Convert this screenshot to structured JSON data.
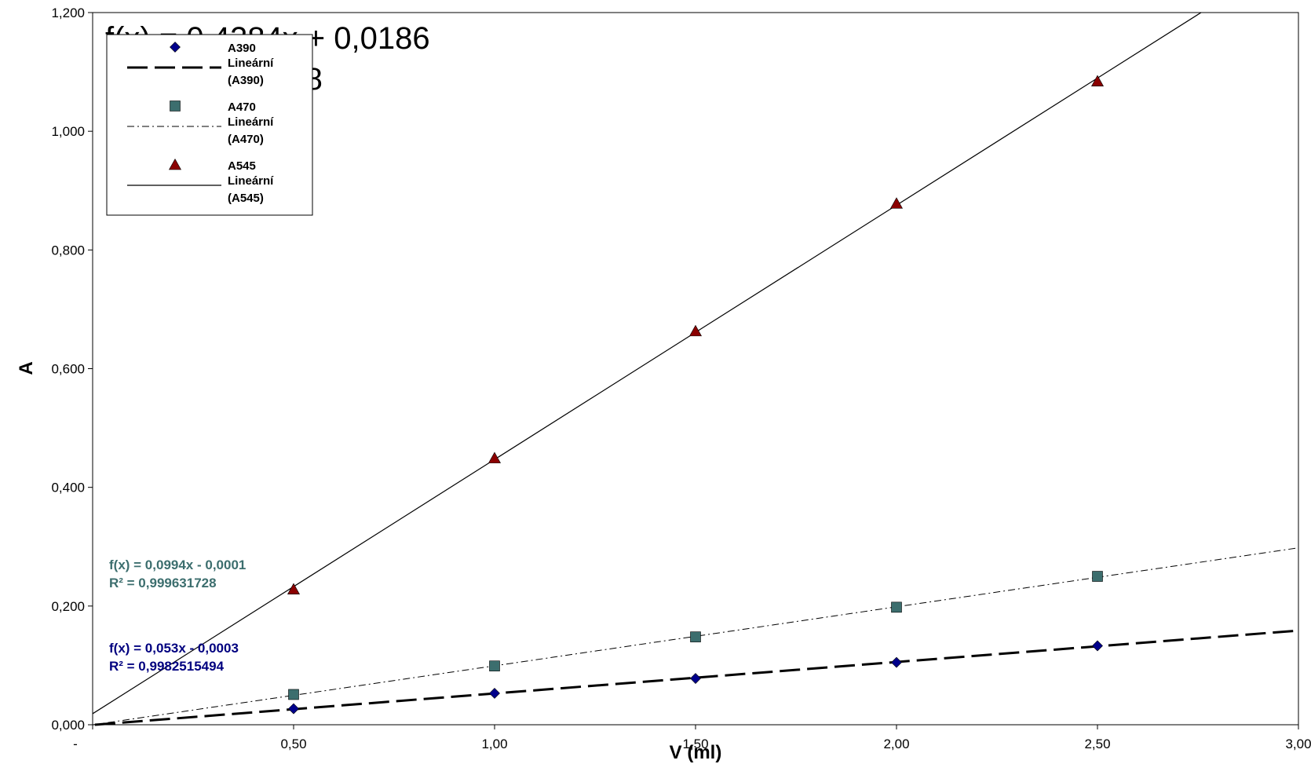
{
  "chart_data": {
    "type": "scatter",
    "xlabel": "V (ml)",
    "ylabel": "A",
    "xlim": [
      0,
      3
    ],
    "ylim": [
      0,
      1.2
    ],
    "x_ticks": [
      0,
      0.5,
      1,
      1.5,
      2,
      2.5,
      3
    ],
    "x_tick_labels": [
      "-",
      "0,50",
      "1,00",
      "1,50",
      "2,00",
      "2,50",
      "3,00"
    ],
    "y_ticks": [
      0,
      0.2,
      0.4,
      0.6,
      0.8,
      1.0,
      1.2
    ],
    "y_tick_labels": [
      "0,000",
      "0,200",
      "0,400",
      "0,600",
      "0,800",
      "1,000",
      "1,200"
    ],
    "grid": false,
    "legend_position": "top-left",
    "series": [
      {
        "name": "A390",
        "marker": "diamond",
        "color": "#00008B",
        "x": [
          0.5,
          1.0,
          1.5,
          2.0,
          2.5
        ],
        "y": [
          0.027,
          0.053,
          0.078,
          0.105,
          0.133
        ],
        "trend_name": "Lineární (A390)",
        "trend_style": "long-dash",
        "trend_color": "#000000",
        "slope": 0.053,
        "intercept": -0.0003,
        "equation": "f(x) = 0,053x - 0,0003",
        "r2": "R² = 0,9982515494",
        "label_color": "#00007F"
      },
      {
        "name": "A470",
        "marker": "square",
        "color": "#3C6E6E",
        "x": [
          0.5,
          1.0,
          1.5,
          2.0,
          2.5
        ],
        "y": [
          0.051,
          0.099,
          0.148,
          0.198,
          0.25
        ],
        "trend_name": "Lineární (A470)",
        "trend_style": "dash-dot",
        "trend_color": "#000000",
        "slope": 0.0994,
        "intercept": -0.0001,
        "equation": "f(x) = 0,0994x - 0,0001",
        "r2": "R² = 0,999631728",
        "label_color": "#3C6E6E"
      },
      {
        "name": "A545",
        "marker": "triangle",
        "color": "#8B0000",
        "x": [
          0.5,
          1.0,
          1.5,
          2.0,
          2.5
        ],
        "y": [
          0.228,
          0.449,
          0.663,
          0.878,
          1.084
        ],
        "trend_name": "Lineární (A545)",
        "trend_style": "solid",
        "trend_color": "#000000",
        "slope": 0.4284,
        "intercept": 0.0186,
        "equation": "f(x) = 0,4284x + 0,0186",
        "r2": "R² = 0,9986528",
        "label_color": "#000000"
      }
    ]
  }
}
